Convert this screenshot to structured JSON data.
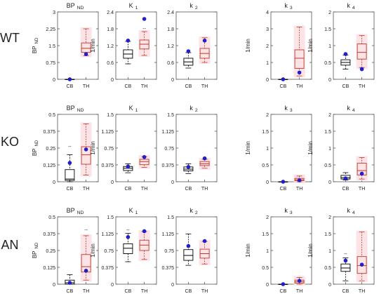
{
  "colors": {
    "cb_box": "#000000",
    "th_box": "#c0392b",
    "th_fill": "#fbe3e6",
    "subject_point": "#1f1fcc",
    "axis": "#555555",
    "outlier": "#000000"
  },
  "rows": [
    {
      "label": "WT"
    },
    {
      "label": "KO"
    },
    {
      "label": "AN"
    }
  ],
  "chart_data": [
    {
      "type": "box",
      "row": "WT",
      "title": "BP",
      "title_sub": "ND",
      "ylabel": "BP",
      "ylabel_sub": "ND",
      "categories": [
        "CB",
        "TH"
      ],
      "ylim": [
        0,
        3
      ],
      "yticks": [
        "0",
        "0.75",
        "1.5",
        "2.25",
        "3"
      ],
      "boxes": [
        {
          "category": "CB",
          "min": 0,
          "q1": 0,
          "median": 0,
          "q3": 0,
          "max": 0,
          "outliers": []
        },
        {
          "category": "TH",
          "min": 1.05,
          "q1": 1.2,
          "median": 1.38,
          "q3": 1.62,
          "max": 2.25,
          "outliers": []
        }
      ],
      "subject_points": [
        {
          "category": "CB",
          "value": 0
        },
        {
          "category": "TH",
          "value": 1.12
        }
      ]
    },
    {
      "type": "box",
      "row": "WT",
      "title": "K",
      "title_sub": "1",
      "ylabel": "1/min",
      "ylabel_sub": "",
      "categories": [
        "CB",
        "TH"
      ],
      "ylim": [
        0,
        2.4
      ],
      "yticks": [
        "0",
        "0.6",
        "1.2",
        "1.8",
        "2.4"
      ],
      "boxes": [
        {
          "category": "CB",
          "min": 0.55,
          "q1": 0.75,
          "median": 0.9,
          "q3": 1.05,
          "max": 1.35,
          "outliers": []
        },
        {
          "category": "TH",
          "min": 0.85,
          "q1": 1.08,
          "median": 1.25,
          "q3": 1.4,
          "max": 1.7,
          "outliers": [
            1.8
          ]
        }
      ],
      "subject_points": [
        {
          "category": "CB",
          "value": 1.38
        },
        {
          "category": "TH",
          "value": 2.15
        }
      ]
    },
    {
      "type": "box",
      "row": "WT",
      "title": "k",
      "title_sub": "2",
      "ylabel": "",
      "ylabel_sub": "",
      "categories": [
        "CB",
        "TH"
      ],
      "ylim": [
        0,
        2.4
      ],
      "yticks": [
        "0",
        "0.6",
        "1.2",
        "1.8",
        "2.4"
      ],
      "boxes": [
        {
          "category": "CB",
          "min": 0.4,
          "q1": 0.5,
          "median": 0.62,
          "q3": 0.75,
          "max": 0.95,
          "outliers": []
        },
        {
          "category": "TH",
          "min": 0.6,
          "q1": 0.75,
          "median": 0.92,
          "q3": 1.1,
          "max": 1.48,
          "outliers": []
        }
      ],
      "subject_points": [
        {
          "category": "CB",
          "value": 1.0
        },
        {
          "category": "TH",
          "value": 1.38
        }
      ]
    },
    {
      "type": "box",
      "row": "WT",
      "title": "k",
      "title_sub": "3",
      "ylabel": "1/min",
      "ylabel_sub": "",
      "categories": [
        "CB",
        "TH"
      ],
      "ylim": [
        0,
        4
      ],
      "yticks": [
        "0",
        "1",
        "2",
        "3",
        "4"
      ],
      "boxes": [
        {
          "category": "CB",
          "min": 0,
          "q1": 0,
          "median": 0,
          "q3": 0,
          "max": 0,
          "outliers": []
        },
        {
          "category": "TH",
          "min": 0.2,
          "q1": 0.65,
          "median": 1.25,
          "q3": 1.75,
          "max": 3.1,
          "outliers": []
        }
      ],
      "subject_points": [
        {
          "category": "CB",
          "value": 0
        },
        {
          "category": "TH",
          "value": 0.4
        }
      ]
    },
    {
      "type": "box",
      "row": "WT",
      "title": "k",
      "title_sub": "4",
      "ylabel": "1/min",
      "ylabel_sub": "",
      "categories": [
        "CB",
        "TH"
      ],
      "ylim": [
        0,
        2
      ],
      "yticks": [
        "0",
        "0.5",
        "1",
        "1.5",
        "2"
      ],
      "boxes": [
        {
          "category": "CB",
          "min": 0.3,
          "q1": 0.42,
          "median": 0.5,
          "q3": 0.58,
          "max": 0.72,
          "outliers": []
        },
        {
          "category": "TH",
          "min": 0.35,
          "q1": 0.6,
          "median": 0.8,
          "q3": 1.05,
          "max": 1.3,
          "outliers": []
        }
      ],
      "subject_points": [
        {
          "category": "CB",
          "value": 0.75
        },
        {
          "category": "TH",
          "value": 0.3
        }
      ]
    },
    {
      "type": "box",
      "row": "KO",
      "title": "BP",
      "title_sub": "ND",
      "ylabel": "BP",
      "ylabel_sub": "ND",
      "categories": [
        "CB",
        "TH"
      ],
      "ylim": [
        0,
        0.5
      ],
      "yticks": [
        "0",
        "0.125",
        "0.25",
        "0.375",
        "0.5"
      ],
      "boxes": [
        {
          "category": "CB",
          "min": 0.0,
          "q1": 0.01,
          "median": 0.02,
          "q3": 0.09,
          "max": 0.2,
          "outliers": [
            0.26
          ]
        },
        {
          "category": "TH",
          "min": 0.05,
          "q1": 0.13,
          "median": 0.2,
          "q3": 0.26,
          "max": 0.43,
          "outliers": []
        }
      ],
      "subject_points": [
        {
          "category": "CB",
          "value": 0.14
        },
        {
          "category": "TH",
          "value": 0.24
        }
      ]
    },
    {
      "type": "box",
      "row": "KO",
      "title": "K",
      "title_sub": "1",
      "ylabel": "1/min",
      "ylabel_sub": "",
      "categories": [
        "CB",
        "TH"
      ],
      "ylim": [
        0,
        1.5
      ],
      "yticks": [
        "0",
        "0.375",
        "0.75",
        "1.125",
        "1.5"
      ],
      "boxes": [
        {
          "category": "CB",
          "min": 0.2,
          "q1": 0.25,
          "median": 0.3,
          "q3": 0.34,
          "max": 0.4,
          "outliers": []
        },
        {
          "category": "TH",
          "min": 0.32,
          "q1": 0.38,
          "median": 0.45,
          "q3": 0.5,
          "max": 0.56,
          "outliers": []
        }
      ],
      "subject_points": [
        {
          "category": "CB",
          "value": 0.34
        },
        {
          "category": "TH",
          "value": 0.55
        }
      ]
    },
    {
      "type": "box",
      "row": "KO",
      "title": "k",
      "title_sub": "2",
      "ylabel": "",
      "ylabel_sub": "",
      "categories": [
        "CB",
        "TH"
      ],
      "ylim": [
        0,
        1.5
      ],
      "yticks": [
        "0",
        "0.375",
        "0.75",
        "1.125",
        "1.5"
      ],
      "boxes": [
        {
          "category": "CB",
          "min": 0.18,
          "q1": 0.24,
          "median": 0.28,
          "q3": 0.33,
          "max": 0.4,
          "outliers": []
        },
        {
          "category": "TH",
          "min": 0.3,
          "q1": 0.36,
          "median": 0.4,
          "q3": 0.45,
          "max": 0.5,
          "outliers": []
        }
      ],
      "subject_points": [
        {
          "category": "CB",
          "value": 0.33
        },
        {
          "category": "TH",
          "value": 0.52
        }
      ]
    },
    {
      "type": "box",
      "row": "KO",
      "title": "k",
      "title_sub": "3",
      "ylabel": "1/min",
      "ylabel_sub": "",
      "categories": [
        "CB",
        "TH"
      ],
      "ylim": [
        0,
        2
      ],
      "yticks": [
        "0",
        "0.5",
        "1",
        "1.5",
        "2"
      ],
      "boxes": [
        {
          "category": "CB",
          "min": 0,
          "q1": 0,
          "median": 0,
          "q3": 0,
          "max": 0,
          "outliers": []
        },
        {
          "category": "TH",
          "min": 0.0,
          "q1": 0.03,
          "median": 0.06,
          "q3": 0.1,
          "max": 0.17,
          "outliers": []
        }
      ],
      "subject_points": [
        {
          "category": "CB",
          "value": 0
        },
        {
          "category": "TH",
          "value": 0.04
        }
      ]
    },
    {
      "type": "box",
      "row": "KO",
      "title": "k",
      "title_sub": "4",
      "ylabel": "1/min",
      "ylabel_sub": "",
      "categories": [
        "CB",
        "TH"
      ],
      "ylim": [
        0,
        2
      ],
      "yticks": [
        "0",
        "0.5",
        "1",
        "1.5",
        "2"
      ],
      "boxes": [
        {
          "category": "CB",
          "min": 0.05,
          "q1": 0.08,
          "median": 0.12,
          "q3": 0.19,
          "max": 0.27,
          "outliers": []
        },
        {
          "category": "TH",
          "min": 0.08,
          "q1": 0.2,
          "median": 0.33,
          "q3": 0.55,
          "max": 0.72,
          "outliers": []
        }
      ],
      "subject_points": [
        {
          "category": "CB",
          "value": 0.1
        },
        {
          "category": "TH",
          "value": 0.24
        }
      ]
    },
    {
      "type": "box",
      "row": "AN",
      "title": "BP",
      "title_sub": "ND",
      "ylabel": "BP",
      "ylabel_sub": "ND",
      "categories": [
        "CB",
        "TH"
      ],
      "ylim": [
        0,
        0.5
      ],
      "yticks": [
        "0",
        "0.125",
        "0.25",
        "0.375",
        "0.5"
      ],
      "boxes": [
        {
          "category": "CB",
          "min": 0.0,
          "q1": 0.0,
          "median": 0.01,
          "q3": 0.03,
          "max": 0.07,
          "outliers": []
        },
        {
          "category": "TH",
          "min": 0.03,
          "q1": 0.09,
          "median": 0.13,
          "q3": 0.22,
          "max": 0.36,
          "outliers": [
            0.4
          ]
        }
      ],
      "subject_points": [
        {
          "category": "CB",
          "value": 0.01
        },
        {
          "category": "TH",
          "value": 0.1
        }
      ]
    },
    {
      "type": "box",
      "row": "AN",
      "title": "K",
      "title_sub": "1",
      "ylabel": "1/min",
      "ylabel_sub": "",
      "categories": [
        "CB",
        "TH"
      ],
      "ylim": [
        0,
        1.5
      ],
      "yticks": [
        "0",
        "0.375",
        "0.75",
        "1.125",
        "1.5"
      ],
      "boxes": [
        {
          "category": "CB",
          "min": 0.5,
          "q1": 0.68,
          "median": 0.8,
          "q3": 0.9,
          "max": 1.13,
          "outliers": [
            1.2
          ]
        },
        {
          "category": "TH",
          "min": 0.55,
          "q1": 0.75,
          "median": 0.87,
          "q3": 0.98,
          "max": 1.17,
          "outliers": []
        }
      ],
      "subject_points": [
        {
          "category": "CB",
          "value": 1.05
        },
        {
          "category": "TH",
          "value": 1.18
        }
      ]
    },
    {
      "type": "box",
      "row": "AN",
      "title": "k",
      "title_sub": "2",
      "ylabel": "",
      "ylabel_sub": "",
      "categories": [
        "CB",
        "TH"
      ],
      "ylim": [
        0,
        1.5
      ],
      "yticks": [
        "0",
        "0.375",
        "0.75",
        "1.125",
        "1.5"
      ],
      "boxes": [
        {
          "category": "CB",
          "min": 0.42,
          "q1": 0.53,
          "median": 0.64,
          "q3": 0.77,
          "max": 1.12,
          "outliers": []
        },
        {
          "category": "TH",
          "min": 0.45,
          "q1": 0.58,
          "median": 0.68,
          "q3": 0.78,
          "max": 0.95,
          "outliers": []
        }
      ],
      "subject_points": [
        {
          "category": "CB",
          "value": 0.85
        },
        {
          "category": "TH",
          "value": 0.96
        }
      ]
    },
    {
      "type": "box",
      "row": "AN",
      "title": "k",
      "title_sub": "3",
      "ylabel": "1/min",
      "ylabel_sub": "",
      "categories": [
        "CB",
        "TH"
      ],
      "ylim": [
        0,
        2
      ],
      "yticks": [
        "0",
        "0.5",
        "1",
        "1.5",
        "2"
      ],
      "boxes": [
        {
          "category": "CB",
          "min": 0,
          "q1": 0,
          "median": 0,
          "q3": 0,
          "max": 0,
          "outliers": []
        },
        {
          "category": "TH",
          "min": 0.0,
          "q1": 0.03,
          "median": 0.07,
          "q3": 0.12,
          "max": 0.2,
          "outliers": []
        }
      ],
      "subject_points": [
        {
          "category": "CB",
          "value": 0
        },
        {
          "category": "TH",
          "value": 0.1
        }
      ]
    },
    {
      "type": "box",
      "row": "AN",
      "title": "k",
      "title_sub": "4",
      "ylabel": "1/min",
      "ylabel_sub": "",
      "categories": [
        "CB",
        "TH"
      ],
      "ylim": [
        0,
        2
      ],
      "yticks": [
        "0",
        "0.5",
        "1",
        "1.5",
        "2"
      ],
      "boxes": [
        {
          "category": "CB",
          "min": 0.1,
          "q1": 0.38,
          "median": 0.48,
          "q3": 0.6,
          "max": 0.78,
          "outliers": [
            0.9
          ]
        },
        {
          "category": "TH",
          "min": 0.1,
          "q1": 0.32,
          "median": 0.55,
          "q3": 0.82,
          "max": 1.55,
          "outliers": []
        }
      ],
      "subject_points": [
        {
          "category": "CB",
          "value": 0.7
        },
        {
          "category": "TH",
          "value": 0.58
        }
      ]
    }
  ]
}
